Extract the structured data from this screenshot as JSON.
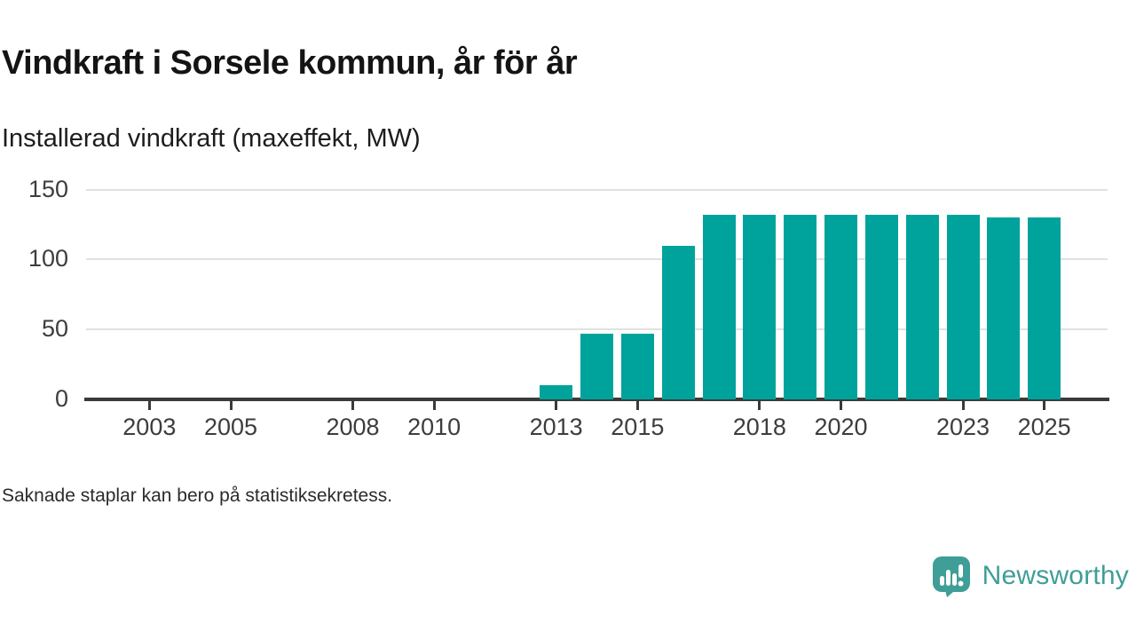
{
  "chart_data": {
    "type": "bar",
    "title": "Vindkraft i Sorsele kommun, år för år",
    "subtitle": "Installerad vindkraft (maxeffekt, MW)",
    "note": "Saknade staplar kan bero på statistiksekretess.",
    "unit": "MW",
    "categories": [
      2013,
      2014,
      2015,
      2016,
      2017,
      2018,
      2019,
      2020,
      2021,
      2022,
      2023,
      2024,
      2025
    ],
    "values": [
      10,
      47,
      47,
      110,
      132,
      132,
      132,
      132,
      132,
      132,
      132,
      130,
      130
    ],
    "xlabel": "",
    "ylabel": "",
    "xlim": [
      2001.4,
      2026.6
    ],
    "ylim": [
      0,
      150
    ],
    "yticks": [
      0,
      50,
      100,
      150
    ],
    "xticks": [
      2003,
      2005,
      2008,
      2010,
      2013,
      2015,
      2018,
      2020,
      2023,
      2025
    ],
    "grid": "horizontal",
    "legend": "none",
    "bar_color": "#00a39b",
    "axis_color": "#3a3a3a",
    "gridline_color": "#e1e1e1"
  },
  "branding": {
    "name": "Newsworthy",
    "logo_icon": "speech-bubble-bar-chart-icon",
    "color": "#3f9e97"
  }
}
